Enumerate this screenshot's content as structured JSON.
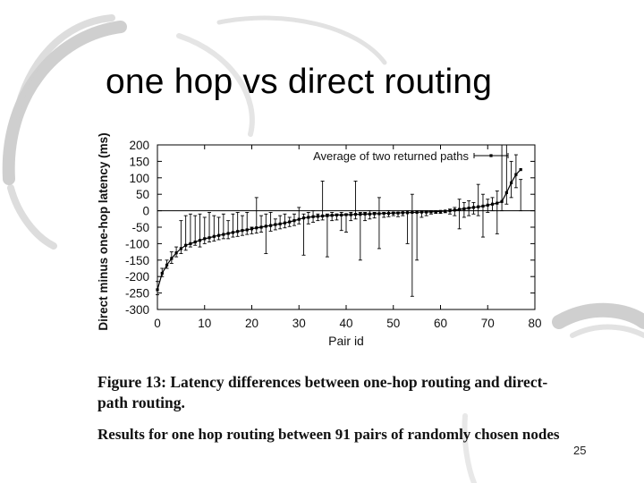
{
  "slide": {
    "title": "one hop vs direct routing",
    "caption": "Figure 13: Latency differences between one-hop routing and direct-path routing.",
    "results_text": "Results for one hop routing between 91 pairs of randomly chosen nodes",
    "page_number": "25"
  },
  "colors": {
    "background": "#ffffff",
    "swoosh": "#cfcfcf",
    "text": "#000000"
  },
  "chart_data": {
    "type": "line",
    "xlabel": "Pair id",
    "ylabel": "Direct minus one-hop latency (ms)",
    "xlim": [
      0,
      80
    ],
    "ylim": [
      -300,
      200
    ],
    "xticks": [
      0,
      10,
      20,
      30,
      40,
      50,
      60,
      70,
      80
    ],
    "yticks": [
      200,
      150,
      100,
      50,
      0,
      -50,
      -100,
      -150,
      -200,
      -250,
      -300
    ],
    "grid": false,
    "zero_line": true,
    "legend": {
      "position": "top-right",
      "entries": [
        "Average of two returned paths"
      ]
    },
    "series": [
      {
        "name": "Average of two returned paths",
        "x": [
          0,
          1,
          2,
          3,
          4,
          5,
          6,
          7,
          8,
          9,
          10,
          11,
          12,
          13,
          14,
          15,
          16,
          17,
          18,
          19,
          20,
          21,
          22,
          23,
          24,
          25,
          26,
          27,
          28,
          29,
          30,
          31,
          32,
          33,
          34,
          35,
          36,
          37,
          38,
          39,
          40,
          41,
          42,
          43,
          44,
          45,
          46,
          47,
          48,
          49,
          50,
          51,
          52,
          53,
          54,
          55,
          56,
          57,
          58,
          59,
          60,
          61,
          62,
          63,
          64,
          65,
          66,
          67,
          68,
          69,
          70,
          71,
          72,
          73,
          74,
          75,
          76,
          77
        ],
        "y": [
          -240,
          -190,
          -165,
          -145,
          -128,
          -115,
          -105,
          -100,
          -95,
          -90,
          -85,
          -82,
          -78,
          -75,
          -72,
          -69,
          -66,
          -63,
          -60,
          -58,
          -55,
          -52,
          -50,
          -47,
          -45,
          -42,
          -40,
          -37,
          -34,
          -30,
          -26,
          -22,
          -20,
          -18,
          -17,
          -16,
          -15,
          -14,
          -13,
          -13,
          -12,
          -12,
          -11,
          -11,
          -10,
          -10,
          -9,
          -9,
          -8,
          -8,
          -7,
          -7,
          -6,
          -6,
          -5,
          -5,
          -4,
          -4,
          -3,
          -3,
          -2,
          -1,
          0,
          2,
          4,
          6,
          8,
          10,
          12,
          14,
          17,
          20,
          23,
          28,
          55,
          85,
          110,
          125
        ],
        "err_low": [
          -255,
          -200,
          -175,
          -160,
          -140,
          -130,
          -120,
          -110,
          -105,
          -110,
          -100,
          -95,
          -92,
          -88,
          -85,
          -85,
          -80,
          -78,
          -75,
          -72,
          -70,
          -68,
          -65,
          -130,
          -62,
          -58,
          -55,
          -52,
          -48,
          -45,
          -40,
          -135,
          -40,
          -35,
          -30,
          -28,
          -140,
          -30,
          -28,
          -60,
          -65,
          -30,
          -25,
          -150,
          -30,
          -25,
          -22,
          -115,
          -20,
          -18,
          -15,
          -18,
          -15,
          -100,
          -260,
          -150,
          -20,
          -15,
          -10,
          -8,
          -8,
          -6,
          -10,
          -15,
          -55,
          -20,
          -15,
          -10,
          -15,
          -80,
          -5,
          0,
          -70,
          0,
          20,
          40,
          70,
          95
        ],
        "err_high": [
          -215,
          -175,
          -150,
          -125,
          -110,
          -30,
          -15,
          -10,
          -15,
          -10,
          -20,
          -5,
          -15,
          -20,
          -10,
          -30,
          -10,
          -5,
          -15,
          -5,
          -50,
          40,
          -15,
          -10,
          -5,
          -25,
          -15,
          -10,
          -20,
          -10,
          10,
          -10,
          -5,
          0,
          -10,
          90,
          -10,
          -5,
          -10,
          -5,
          -10,
          -5,
          90,
          -5,
          -5,
          0,
          -5,
          40,
          -5,
          0,
          -5,
          -5,
          -5,
          0,
          50,
          0,
          0,
          0,
          0,
          0,
          0,
          0,
          5,
          10,
          35,
          25,
          30,
          25,
          80,
          50,
          35,
          40,
          60,
          200,
          200,
          150,
          170,
          0
        ]
      }
    ]
  }
}
